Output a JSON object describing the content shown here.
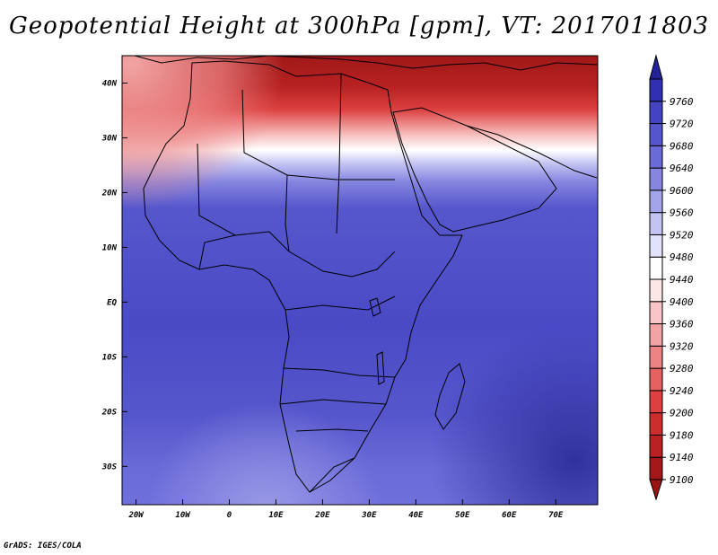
{
  "title": "Geopotential Height at 300hPa [gpm], VT: 2017011803",
  "credit": "GrADS: IGES/COLA",
  "map": {
    "projection": "latlon",
    "lon_range": [
      -23,
      79
    ],
    "lat_range": [
      -37,
      45
    ],
    "lon_ticks": [
      {
        "lon": -20,
        "label": "20W"
      },
      {
        "lon": -10,
        "label": "10W"
      },
      {
        "lon": 0,
        "label": "0"
      },
      {
        "lon": 10,
        "label": "10E"
      },
      {
        "lon": 20,
        "label": "20E"
      },
      {
        "lon": 30,
        "label": "30E"
      },
      {
        "lon": 40,
        "label": "40E"
      },
      {
        "lon": 50,
        "label": "50E"
      },
      {
        "lon": 60,
        "label": "60E"
      },
      {
        "lon": 70,
        "label": "70E"
      }
    ],
    "lat_ticks": [
      {
        "lat": 40,
        "label": "40N"
      },
      {
        "lat": 30,
        "label": "30N"
      },
      {
        "lat": 20,
        "label": "20N"
      },
      {
        "lat": 10,
        "label": "10N"
      },
      {
        "lat": 0,
        "label": "EQ"
      },
      {
        "lat": -10,
        "label": "10S"
      },
      {
        "lat": -20,
        "label": "20S"
      },
      {
        "lat": -30,
        "label": "30S"
      }
    ]
  },
  "colorbar": {
    "levels": [
      {
        "label": "9100",
        "color": "#a01818"
      },
      {
        "label": "9140",
        "color": "#b82222"
      },
      {
        "label": "9180",
        "color": "#cc2e2e"
      },
      {
        "label": "9200",
        "color": "#dc4040"
      },
      {
        "label": "9240",
        "color": "#e46262"
      },
      {
        "label": "9280",
        "color": "#ec8484"
      },
      {
        "label": "9320",
        "color": "#f2a4a4"
      },
      {
        "label": "9360",
        "color": "#f8c6c6"
      },
      {
        "label": "9400",
        "color": "#fde6e6"
      },
      {
        "label": "9440",
        "color": "#ffffff"
      },
      {
        "label": "9480",
        "color": "#e2e2fa"
      },
      {
        "label": "9520",
        "color": "#c4c4f2"
      },
      {
        "label": "9560",
        "color": "#a4a4ea"
      },
      {
        "label": "9600",
        "color": "#8686e0"
      },
      {
        "label": "9640",
        "color": "#6a6ad8"
      },
      {
        "label": "9680",
        "color": "#5656cc"
      },
      {
        "label": "9720",
        "color": "#4444c0"
      },
      {
        "label": "9760",
        "color": "#3030b0"
      }
    ],
    "top_color": "#22229a",
    "bottom_color": "#9a1414"
  }
}
